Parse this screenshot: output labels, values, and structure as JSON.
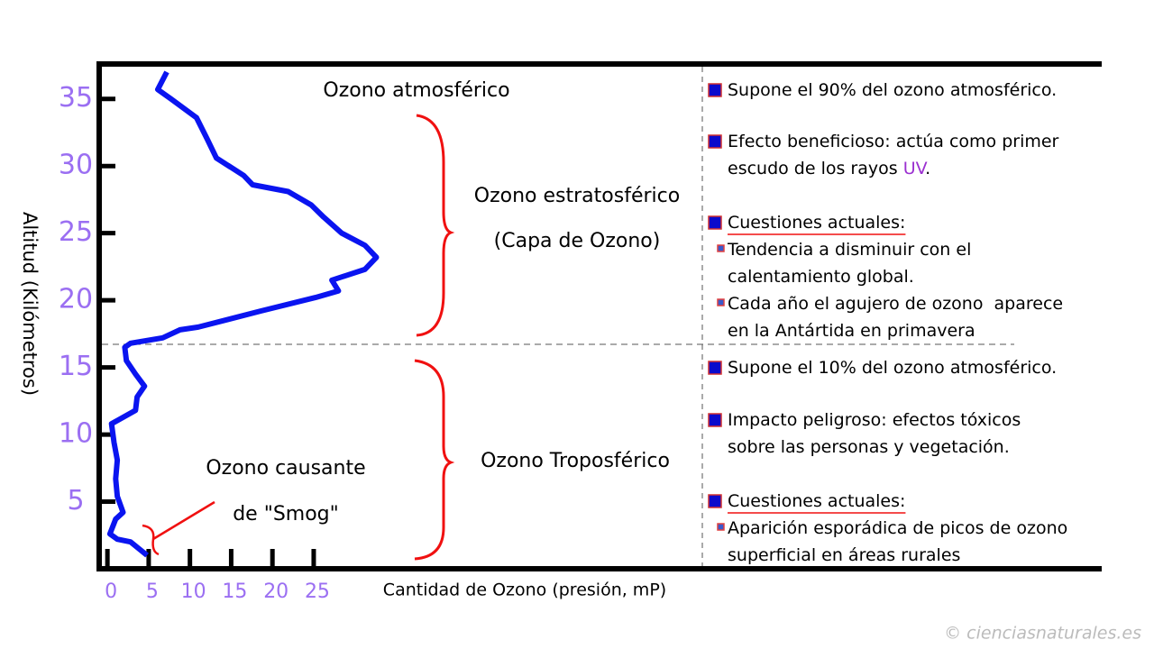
{
  "chart_data": {
    "type": "line",
    "x_label": "Cantidad de Ozono (presión, mP)",
    "y_label": "Altitud (Kilómetros)",
    "xlim": [
      -1,
      72.1
    ],
    "ylim": [
      0,
      37.6
    ],
    "xticks": [
      0,
      5,
      10,
      15,
      20,
      25
    ],
    "yticks": [
      5,
      10,
      15,
      20,
      25,
      30,
      35
    ],
    "series": [
      {
        "color": "#0a14f0",
        "x": [
          4.8,
          2.8,
          1.2,
          0.3,
          1.0,
          1.9,
          1.2,
          1.0,
          1.2,
          0.8,
          0.5,
          3.4,
          3.6,
          4.5,
          3.4,
          2.3,
          2.1,
          2.8,
          6.7,
          8.8,
          11.0,
          18.6,
          25.2,
          28.0,
          27.2,
          31.2,
          32.6,
          31.2,
          28.4,
          26.2,
          24.7,
          21.9,
          17.6,
          16.5,
          13.2,
          12.1,
          10.8,
          7.7,
          6.1,
          7.2
        ],
        "values": [
          1.0,
          2.0,
          2.2,
          2.6,
          3.7,
          4.2,
          5.4,
          6.7,
          8.1,
          9.4,
          10.8,
          11.8,
          12.8,
          13.6,
          14.5,
          15.5,
          16.5,
          16.8,
          17.2,
          17.8,
          18.0,
          19.2,
          20.2,
          20.7,
          21.5,
          22.3,
          23.2,
          24.1,
          25.0,
          26.2,
          27.1,
          28.1,
          28.6,
          29.3,
          30.6,
          32.0,
          33.6,
          35.0,
          35.7,
          37.0
        ]
      }
    ],
    "annotations": [
      "Ozono atmosférico",
      "Ozono estratosférico",
      "(Capa de Ozono)",
      "Ozono Troposférico",
      "Ozono causante",
      "de \"Smog\""
    ],
    "notes": [
      {
        "bullet": "big",
        "lines": [
          [
            "Supone el 90% del ozono atmosférico."
          ]
        ]
      },
      {
        "bullet": "big",
        "lines": [
          [
            "Efecto beneficioso: actúa como primer"
          ],
          [
            "escudo de los rayos ",
            "UV",
            "."
          ]
        ]
      },
      {
        "bullet": "big",
        "underline": true,
        "lines": [
          [
            "Cuestiones actuales:"
          ]
        ]
      },
      {
        "bullet": "small",
        "lines": [
          [
            "Tendencia a disminuir con el"
          ],
          [
            "calentamiento global."
          ]
        ]
      },
      {
        "bullet": "small",
        "lines": [
          [
            "Cada año el agujero de ozono  aparece"
          ],
          [
            "en la Antártida en primavera"
          ]
        ]
      },
      {
        "bullet": "big",
        "lines": [
          [
            "Supone el 10% del ozono atmosférico."
          ]
        ]
      },
      {
        "bullet": "big",
        "lines": [
          [
            "Impacto peligroso: efectos tóxicos"
          ],
          [
            "sobre las personas y vegetación."
          ]
        ]
      },
      {
        "bullet": "big",
        "underline": true,
        "lines": [
          [
            "Cuestiones actuales:"
          ]
        ]
      },
      {
        "bullet": "small",
        "lines": [
          [
            "Aparición esporádica de picos de ozono"
          ],
          [
            "superficial en áreas rurales"
          ]
        ]
      }
    ],
    "copyright": "© cienciasnaturales.es"
  }
}
